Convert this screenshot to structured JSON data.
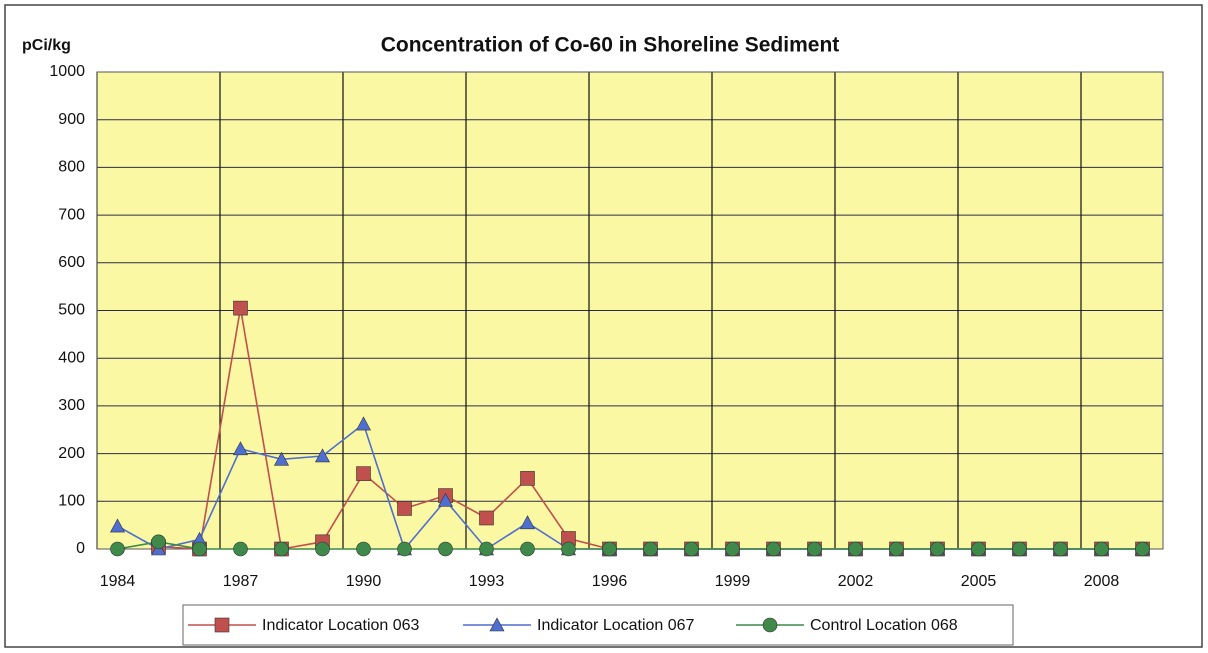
{
  "chart_data": {
    "type": "line",
    "title": "Concentration of Co-60 in Shoreline Sediment",
    "y_label": "pCi/kg",
    "categories": [
      "1984",
      null,
      null,
      "1987",
      null,
      null,
      "1990",
      null,
      null,
      "1993",
      null,
      null,
      "1996",
      null,
      null,
      "1999",
      null,
      null,
      "2002",
      null,
      null,
      "2005",
      null,
      null,
      "2008",
      null
    ],
    "series": [
      {
        "name": "Indicator Location 063",
        "color": "#c0504d",
        "marker": "square",
        "values": [
          null,
          5,
          0,
          505,
          0,
          15,
          158,
          85,
          112,
          65,
          148,
          22,
          0,
          0,
          0,
          0,
          0,
          0,
          0,
          0,
          0,
          0,
          0,
          0,
          0,
          0
        ]
      },
      {
        "name": "Indicator Location 067",
        "color": "#4f6fd0",
        "marker": "triangle",
        "values": [
          48,
          0,
          20,
          210,
          188,
          195,
          262,
          0,
          102,
          0,
          55,
          0,
          0,
          0,
          0,
          0,
          0,
          0,
          0,
          0,
          0,
          0,
          0,
          0,
          0,
          0
        ]
      },
      {
        "name": "Control Location 068",
        "color": "#3f8a4a",
        "marker": "circle",
        "values": [
          0,
          15,
          0,
          0,
          0,
          0,
          0,
          0,
          0,
          0,
          0,
          0,
          0,
          0,
          0,
          0,
          0,
          0,
          0,
          0,
          0,
          0,
          0,
          0,
          0,
          0
        ]
      }
    ],
    "ylim": [
      0,
      1000
    ],
    "yticks": [
      0,
      100,
      200,
      300,
      400,
      500,
      600,
      700,
      800,
      900,
      1000
    ],
    "grid": true,
    "legend": "bottom"
  }
}
